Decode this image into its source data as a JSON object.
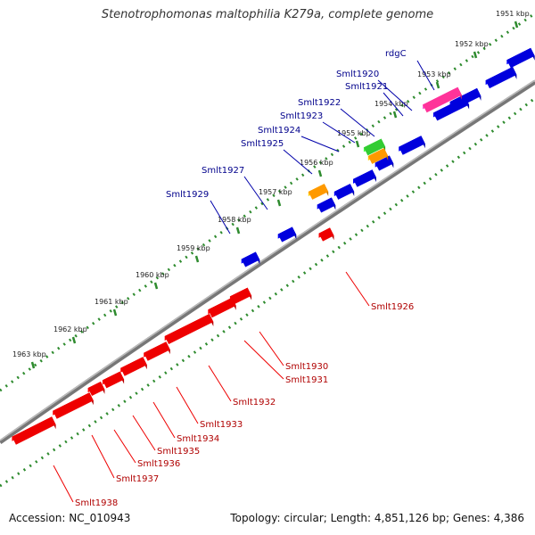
{
  "title": "Stenotrophomonas maltophilia K279a, complete genome",
  "accession": "Accession: NC_010943",
  "summary": "Topology: circular; Length: 4,851,126 bp; Genes: 4,386",
  "colors": {
    "backbone": "#8a8a8a",
    "ticks": "#2e8b2e",
    "forward_label": "#00008b",
    "reverse_label": "#b00000",
    "gene_forward": "#0000dd",
    "gene_reverse": "#ee0000",
    "gene_rrna": "#ff3399",
    "gene_trna": "#ff9900",
    "gene_misc": "#33cc33"
  },
  "scale_labels": [
    "1951 kbp",
    "1952 kbp",
    "1953 kbp",
    "1954 kbp",
    "1955 kbp",
    "1956 kbp",
    "1957 kbp",
    "1958 kbp",
    "1959 kbp",
    "1960 kbp",
    "1961 kbp",
    "1962 kbp",
    "1963 kbp"
  ],
  "forward_gene_labels": [
    "rdgC",
    "Smlt1920",
    "Smlt1921",
    "Smlt1922",
    "Smlt1923",
    "Smlt1924",
    "Smlt1925",
    "Smlt1927",
    "Smlt1929"
  ],
  "reverse_gene_labels": [
    "Smlt1926",
    "Smlt1930",
    "Smlt1931",
    "Smlt1932",
    "Smlt1933",
    "Smlt1934",
    "Smlt1935",
    "Smlt1936",
    "Smlt1937",
    "Smlt1938"
  ]
}
